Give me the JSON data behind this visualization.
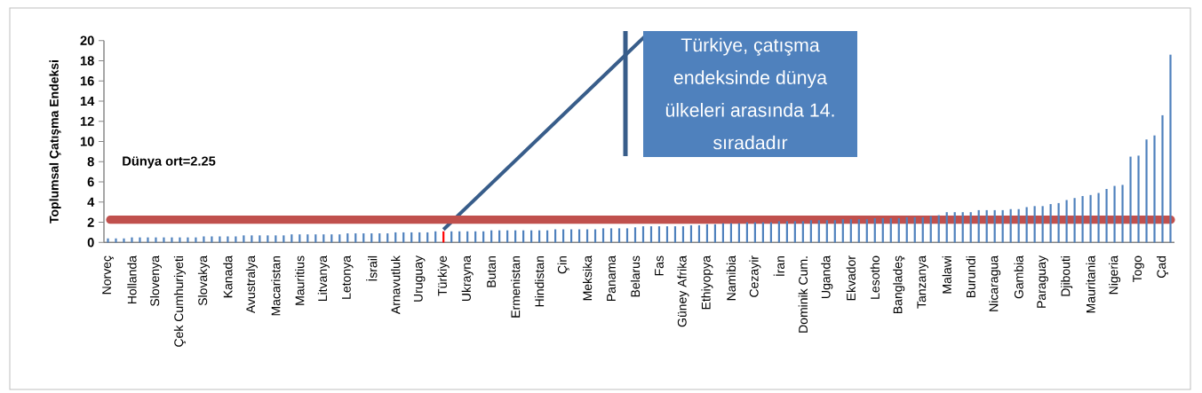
{
  "chart_data": {
    "type": "bar",
    "ylabel": "Toplumsal Çatışma Endeksi",
    "categories": [
      "Norveç",
      null,
      null,
      "Hollanda",
      null,
      null,
      "Slovenya",
      null,
      null,
      "Çek Cumhuriyeti",
      null,
      null,
      "Slovakya",
      null,
      null,
      "Kanada",
      null,
      null,
      "Avustralya",
      null,
      null,
      "Macaristan",
      null,
      null,
      "Mauritius",
      null,
      null,
      "Litvanya",
      null,
      null,
      "Letonya",
      null,
      null,
      "İsrail",
      null,
      null,
      "Arnavutluk",
      null,
      null,
      "Uruguay",
      null,
      null,
      "Türkiye",
      null,
      null,
      "Ukrayna",
      null,
      null,
      "Butan",
      null,
      null,
      "Ermenistan",
      null,
      null,
      "Hindistan",
      null,
      null,
      "Çin",
      null,
      null,
      "Meksika",
      null,
      null,
      "Panama",
      null,
      null,
      "Belarus",
      null,
      null,
      "Fas",
      null,
      null,
      "Güney Afrika",
      null,
      null,
      "Ethiyopya",
      null,
      null,
      "Namibia",
      null,
      null,
      "Cezayir",
      null,
      null,
      "İran",
      null,
      null,
      "Dominik Cum.",
      null,
      null,
      "Uganda",
      null,
      null,
      "Ekvador",
      null,
      null,
      "Lesotho",
      null,
      null,
      "Bangladeş",
      null,
      null,
      "Tanzanya",
      null,
      null,
      "Malawi",
      null,
      null,
      "Burundi",
      null,
      null,
      "Nicaragua",
      null,
      null,
      "Gambia",
      null,
      null,
      "Paraguay",
      null,
      null,
      "Djibouti",
      null,
      null,
      "Mauritania",
      null,
      null,
      "Nigeria",
      null,
      null,
      "Togo",
      null,
      null,
      "Çad",
      null
    ],
    "values": [
      0.4,
      0.4,
      0.4,
      0.5,
      0.5,
      0.5,
      0.5,
      0.5,
      0.5,
      0.5,
      0.5,
      0.5,
      0.6,
      0.6,
      0.6,
      0.6,
      0.6,
      0.7,
      0.7,
      0.7,
      0.7,
      0.7,
      0.7,
      0.8,
      0.8,
      0.8,
      0.8,
      0.8,
      0.8,
      0.8,
      0.9,
      0.9,
      0.9,
      0.9,
      0.9,
      0.9,
      1.0,
      1.0,
      1.0,
      1.0,
      1.0,
      1.1,
      1.1,
      1.1,
      1.1,
      1.1,
      1.1,
      1.1,
      1.2,
      1.2,
      1.2,
      1.2,
      1.2,
      1.2,
      1.2,
      1.2,
      1.3,
      1.3,
      1.3,
      1.3,
      1.3,
      1.3,
      1.4,
      1.4,
      1.4,
      1.4,
      1.5,
      1.6,
      1.6,
      1.6,
      1.6,
      1.6,
      1.6,
      1.7,
      1.7,
      1.8,
      1.8,
      1.9,
      1.9,
      1.9,
      2.0,
      2.0,
      2.0,
      2.0,
      2.1,
      2.1,
      2.1,
      2.1,
      2.2,
      2.2,
      2.2,
      2.2,
      2.3,
      2.3,
      2.3,
      2.3,
      2.4,
      2.4,
      2.4,
      2.4,
      2.5,
      2.5,
      2.5,
      2.6,
      2.7,
      3.0,
      3.0,
      3.0,
      3.0,
      3.2,
      3.2,
      3.2,
      3.2,
      3.3,
      3.3,
      3.5,
      3.6,
      3.6,
      3.8,
      3.9,
      4.2,
      4.4,
      4.6,
      4.7,
      4.9,
      5.3,
      5.6,
      5.7,
      8.5,
      8.6,
      10.2,
      10.6,
      12.6,
      18.6
    ],
    "colors": [
      "#4f81bd",
      "#4f81bd",
      "#4f81bd",
      "#4f81bd",
      "#4f81bd",
      "#4f81bd",
      "#4f81bd",
      "#4f81bd",
      "#4f81bd",
      "#4f81bd",
      "#4f81bd",
      "#4f81bd",
      "#4f81bd",
      "#4f81bd",
      "#4f81bd",
      "#4f81bd",
      "#4f81bd",
      "#4f81bd",
      "#4f81bd",
      "#4f81bd",
      "#4f81bd",
      "#4f81bd",
      "#4f81bd",
      "#4f81bd",
      "#4f81bd",
      "#4f81bd",
      "#4f81bd",
      "#4f81bd",
      "#4f81bd",
      "#4f81bd",
      "#4f81bd",
      "#4f81bd",
      "#4f81bd",
      "#4f81bd",
      "#4f81bd",
      "#4f81bd",
      "#4f81bd",
      "#4f81bd",
      "#4f81bd",
      "#4f81bd",
      "#4f81bd",
      "#4f81bd",
      "#ff0000",
      "#4f81bd",
      "#4f81bd",
      "#4f81bd",
      "#4f81bd",
      "#4f81bd",
      "#4f81bd",
      "#4f81bd",
      "#4f81bd",
      "#4f81bd",
      "#4f81bd",
      "#4f81bd",
      "#4f81bd",
      "#4f81bd",
      "#4f81bd",
      "#4f81bd",
      "#4f81bd",
      "#4f81bd",
      "#4f81bd",
      "#4f81bd",
      "#4f81bd",
      "#4f81bd",
      "#4f81bd",
      "#4f81bd",
      "#4f81bd",
      "#4f81bd",
      "#4f81bd",
      "#4f81bd",
      "#4f81bd",
      "#4f81bd",
      "#4f81bd",
      "#4f81bd",
      "#4f81bd",
      "#4f81bd",
      "#4f81bd",
      "#4f81bd",
      "#4f81bd",
      "#4f81bd",
      "#4f81bd",
      "#4f81bd",
      "#4f81bd",
      "#4f81bd",
      "#4f81bd",
      "#4f81bd",
      "#4f81bd",
      "#4f81bd",
      "#4f81bd",
      "#4f81bd",
      "#4f81bd",
      "#4f81bd",
      "#4f81bd",
      "#4f81bd",
      "#4f81bd",
      "#4f81bd",
      "#4f81bd",
      "#4f81bd",
      "#4f81bd",
      "#4f81bd",
      "#4f81bd",
      "#4f81bd",
      "#4f81bd",
      "#4f81bd",
      "#4f81bd",
      "#4f81bd",
      "#4f81bd",
      "#4f81bd",
      "#4f81bd",
      "#4f81bd",
      "#4f81bd",
      "#4f81bd",
      "#4f81bd",
      "#4f81bd",
      "#4f81bd",
      "#4f81bd",
      "#4f81bd",
      "#4f81bd",
      "#4f81bd",
      "#4f81bd",
      "#4f81bd",
      "#4f81bd",
      "#4f81bd",
      "#4f81bd",
      "#4f81bd",
      "#4f81bd",
      "#4f81bd",
      "#4f81bd",
      "#4f81bd",
      "#4f81bd",
      "#4f81bd",
      "#4f81bd",
      "#4f81bd",
      "#4f81bd"
    ],
    "ylim": [
      0,
      20
    ],
    "yticks": [
      0,
      2,
      4,
      6,
      8,
      10,
      12,
      14,
      16,
      18,
      20
    ],
    "ref_lines": [
      {
        "axis": "y",
        "value": 2.25,
        "color": "#c0504d"
      }
    ],
    "annotations": [
      {
        "text": "Türkiye, çatışma endeksinde dünya ülkeleri arasında 14. sıradadır",
        "x": "Türkiye",
        "y": 1.1
      },
      "Dünya ort=2.25"
    ]
  }
}
